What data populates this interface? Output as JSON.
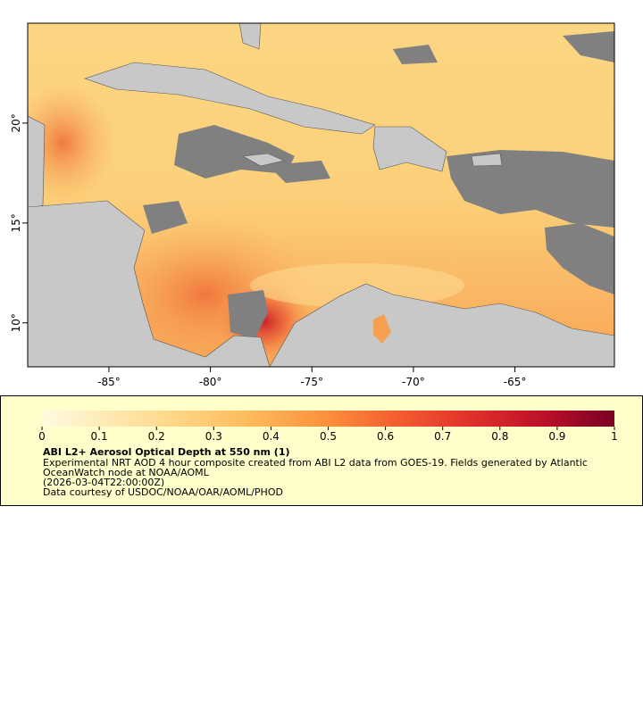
{
  "map": {
    "xlim": [
      -89,
      -60.1
    ],
    "ylim": [
      7.8,
      25
    ],
    "xticks": [
      {
        "value": -85,
        "label": "-85°"
      },
      {
        "value": -80,
        "label": "-80°"
      },
      {
        "value": -75,
        "label": "-75°"
      },
      {
        "value": -70,
        "label": "-70°"
      },
      {
        "value": -65,
        "label": "-65°"
      }
    ],
    "yticks": [
      {
        "value": 10,
        "label": "10°"
      },
      {
        "value": 15,
        "label": "15°"
      },
      {
        "value": 20,
        "label": "20°"
      }
    ]
  },
  "legend": {
    "colorbar": {
      "lim": [
        0,
        1
      ],
      "ticks": [
        0,
        0.1,
        0.2,
        0.3,
        0.4,
        0.5,
        0.6,
        0.7,
        0.8,
        0.9,
        1
      ]
    },
    "title": "ABI L2+ Aerosol Optical Depth at 550 nm (1)",
    "lines": [
      "Experimental NRT AOD 4 hour composite created from ABI L2 data from GOES-19. Fields generated by Atlantic",
      "OceanWatch node at NOAA/AOML",
      "(2026-03-04T22:00:00Z)",
      "Data courtesy of USDOC/NOAA/OAR/AOML/PHOD"
    ]
  }
}
